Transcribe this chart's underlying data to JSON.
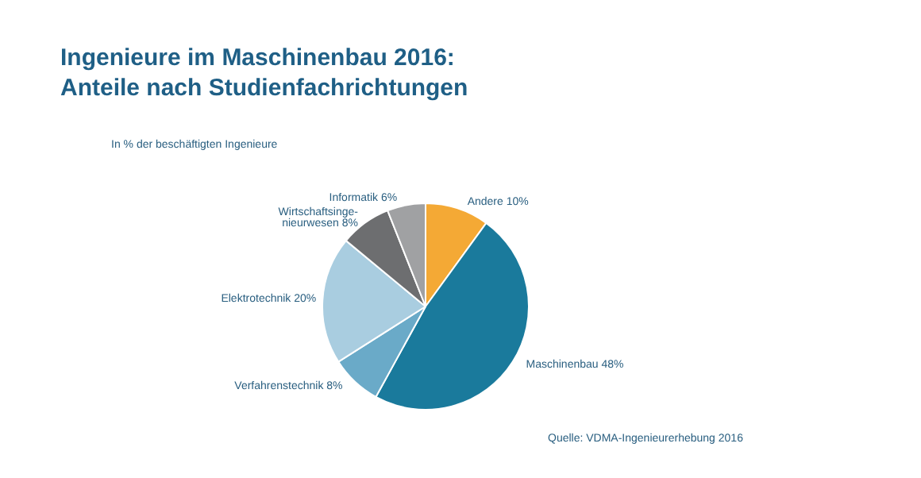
{
  "chart_data": {
    "type": "pie",
    "title": "Ingenieure im Maschinenbau 2016:\nAnteile nach Studienfachrichtungen",
    "subtitle": "In % der beschäftigten Ingenieure",
    "categories": [
      "Andere",
      "Maschinenbau",
      "Verfahrenstechnik",
      "Elektrotechnik",
      "Wirtschaftsinge-\nnieurwesen",
      "Informatik"
    ],
    "values": [
      10,
      48,
      8,
      20,
      8,
      6
    ],
    "value_labels": [
      "10%",
      "48%",
      "8%",
      "20%",
      "8%",
      "6%"
    ],
    "colors": [
      "#f4a935",
      "#1a7a9c",
      "#6aaac8",
      "#a9cde0",
      "#6d6e70",
      "#a0a1a3"
    ],
    "annotations": [
      "Quelle: VDMA-Ingenieurerhebung 2016"
    ],
    "legend": false
  }
}
